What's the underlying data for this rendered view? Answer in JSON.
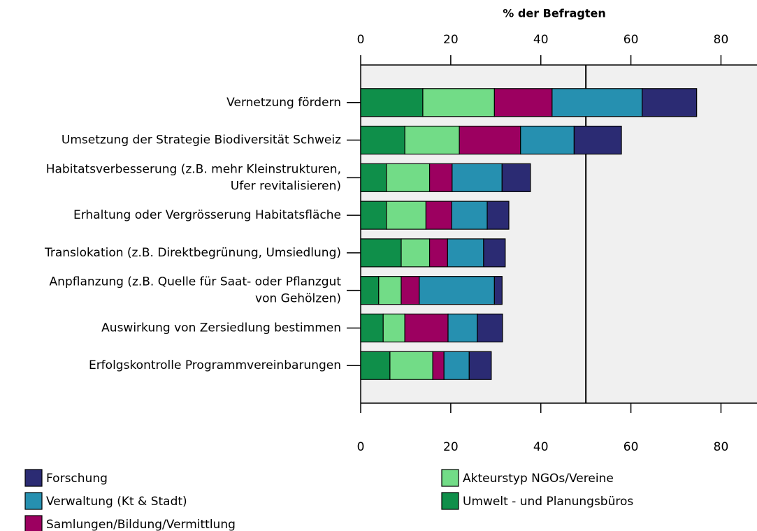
{
  "chart_data": {
    "type": "stacked_barh",
    "title": "% der Befragten",
    "categories": [
      [
        "Vernetzung fördern"
      ],
      [
        "Umsetzung der Strategie Biodiversität Schweiz"
      ],
      [
        "Habitatsverbesserung (z.B. mehr Kleinstrukturen,",
        "Ufer revitalisieren)"
      ],
      [
        "Erhaltung oder Vergrösserung Habitatsfläche"
      ],
      [
        "Translokation (z.B. Direktbegrünung, Umsiedlung)"
      ],
      [
        "Anpflanzung (z.B. Quelle für Saat- oder Pflanzgut",
        "von Gehölzen)"
      ],
      [
        "Auswirkung von Zersiedlung bestimmen"
      ],
      [
        "Erfolgskontrolle Programmvereinbarungen"
      ]
    ],
    "series": [
      {
        "name": "Umwelt - und Planungsbüros",
        "color": "#0f8f4a",
        "values": [
          13.8,
          9.8,
          5.7,
          5.7,
          9.0,
          4.0,
          5.0,
          6.5
        ]
      },
      {
        "name": "Akteurstyp NGOs/Vereine",
        "color": "#72dc87",
        "values": [
          15.9,
          12.1,
          9.6,
          8.8,
          6.3,
          5.0,
          4.8,
          9.5
        ]
      },
      {
        "name": "Samlungen/Bildung/Vermittlung",
        "color": "#9c0060",
        "values": [
          12.8,
          13.6,
          5.0,
          5.7,
          4.0,
          4.0,
          9.6,
          2.5
        ]
      },
      {
        "name": "Verwaltung (Kt & Stadt)",
        "color": "#2690b0",
        "values": [
          20.0,
          11.9,
          11.1,
          7.9,
          8.0,
          16.7,
          6.5,
          5.6
        ]
      },
      {
        "name": "Forschung",
        "color": "#2b2b73",
        "values": [
          12.1,
          10.5,
          6.3,
          4.8,
          4.8,
          1.7,
          5.6,
          4.9
        ]
      }
    ],
    "xlim": [
      0,
      88
    ],
    "xticks": [
      0,
      20,
      40,
      60,
      80
    ],
    "reference_line": 50,
    "plot_background": "#f0f0f0"
  }
}
